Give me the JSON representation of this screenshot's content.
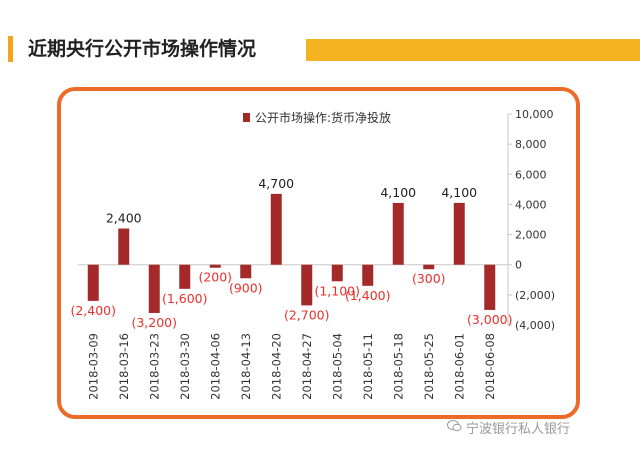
{
  "header": {
    "title": "近期央行公开市场操作情况"
  },
  "watermark": {
    "text": "宁波银行私人银行",
    "icon": "wechat-icon"
  },
  "colors": {
    "bar": "#a42a2a",
    "negative_label": "#e8302a",
    "frame": "#ec6b2a",
    "accent": "#f5b321"
  },
  "chart_data": {
    "type": "bar",
    "categories": [
      "2018-03-09",
      "2018-03-16",
      "2018-03-23",
      "2018-03-30",
      "2018-04-06",
      "2018-04-13",
      "2018-04-20",
      "2018-04-27",
      "2018-05-04",
      "2018-05-11",
      "2018-05-18",
      "2018-05-25",
      "2018-06-01",
      "2018-06-08"
    ],
    "series": [
      {
        "name": "公开市场操作:货币净投放",
        "values": [
          -2400,
          2400,
          -3200,
          -1600,
          -200,
          -900,
          4700,
          -2700,
          -1100,
          -1400,
          4100,
          -300,
          4100,
          -3000
        ]
      }
    ],
    "data_labels": [
      "(2,400)",
      "2,400",
      "(3,200)",
      "(1,600)",
      "(200)",
      "(900)",
      "4,700",
      "(2,700)",
      "(1,100)",
      "(1,400)",
      "4,100",
      "(300)",
      "4,100",
      "(3,000)"
    ],
    "y_ticks": [
      "10,000",
      "8,000",
      "6,000",
      "4,000",
      "2,000",
      "0",
      "(2,000)",
      "(4,000)"
    ],
    "y_tick_values": [
      10000,
      8000,
      6000,
      4000,
      2000,
      0,
      -2000,
      -4000
    ],
    "ylim": [
      -4000,
      10000
    ],
    "y_axis_side": "right",
    "legend_position": "top-center",
    "grid": false
  }
}
